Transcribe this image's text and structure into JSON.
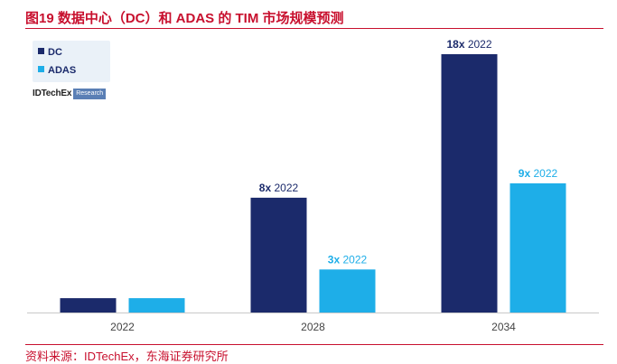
{
  "figure": {
    "title": "图19  数据中心（DC）和 ADAS 的 TIM 市场规模预测",
    "source": "资料来源：IDTechEx，东海证券研究所"
  },
  "legend": {
    "items": [
      {
        "label": "DC",
        "color": "#1b2a6b"
      },
      {
        "label": "ADAS",
        "color": "#1eaee8"
      }
    ]
  },
  "logo": {
    "main": "IDTechEx",
    "sub": "Research"
  },
  "colors": {
    "dc": "#1b2a6b",
    "adas": "#1eaee8",
    "accent": "#c8102e",
    "axis": "#c9c9c9"
  },
  "chart_data": {
    "type": "bar",
    "title": "",
    "xlabel": "",
    "ylabel": "",
    "categories": [
      "2022",
      "2028",
      "2034"
    ],
    "series": [
      {
        "name": "DC",
        "values": [
          1,
          8,
          18
        ],
        "labels": [
          null,
          "8x 2022",
          "18x 2022"
        ],
        "color": "#1b2a6b"
      },
      {
        "name": "ADAS",
        "values": [
          1,
          3,
          9
        ],
        "labels": [
          null,
          "3x 2022",
          "9x 2022"
        ],
        "color": "#1eaee8"
      }
    ],
    "units": "multiple of 2022 market size",
    "ylim": [
      0,
      18
    ],
    "grid": false,
    "legend_position": "top-left"
  }
}
